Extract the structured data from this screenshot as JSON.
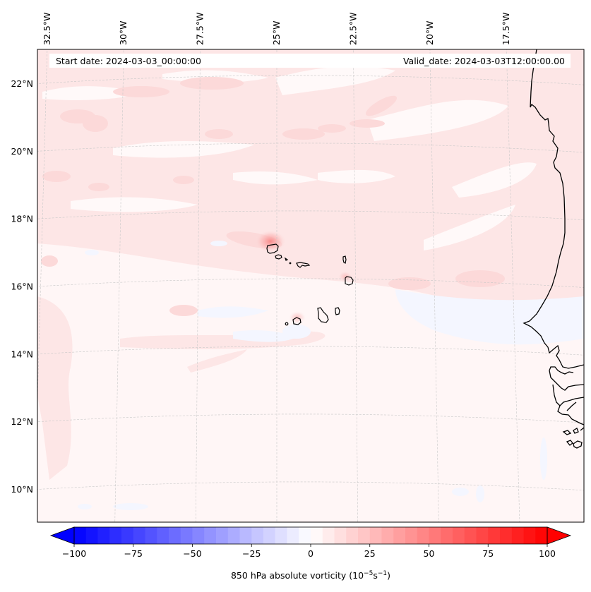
{
  "map": {
    "title_left_label": "Start date: 2024-03-03_00:00:00",
    "title_right_label": "Valid_date: 2024-03-03T12:00:00.00",
    "variable": "850 hPa absolute vorticity",
    "units": "10^-5 s^-1",
    "projection": "Lambert conformal",
    "extent": {
      "lon": [
        -33,
        -15
      ],
      "lat": [
        9,
        23
      ]
    },
    "lon_ticks": [
      {
        "value": -32.5,
        "label": "32.5°W"
      },
      {
        "value": -30,
        "label": "30°W"
      },
      {
        "value": -27.5,
        "label": "27.5°W"
      },
      {
        "value": -25,
        "label": "25°W"
      },
      {
        "value": -22.5,
        "label": "22.5°W"
      },
      {
        "value": -20,
        "label": "20°W"
      },
      {
        "value": -17.5,
        "label": "17.5°W"
      }
    ],
    "lat_ticks": [
      {
        "value": 22,
        "label": "22°N"
      },
      {
        "value": 20,
        "label": "20°N"
      },
      {
        "value": 18,
        "label": "18°N"
      },
      {
        "value": 16,
        "label": "16°N"
      },
      {
        "value": 14,
        "label": "14°N"
      },
      {
        "value": 12,
        "label": "12°N"
      },
      {
        "value": 10,
        "label": "10°N"
      }
    ],
    "features": [
      "Cape Verde islands",
      "West African coastline"
    ],
    "gridlines": "dashed, light gray"
  },
  "colorbar": {
    "label_main": "850 hPa absolute vorticity (10",
    "label_exp1": "−5",
    "label_mid": "s",
    "label_exp2": "−1",
    "label_end": ")",
    "min": -100,
    "max": 100,
    "step": 5,
    "extend": "both",
    "colormap": "bwr",
    "ticks": [
      {
        "value": -100,
        "label": "−100"
      },
      {
        "value": -75,
        "label": "−75"
      },
      {
        "value": -50,
        "label": "−50"
      },
      {
        "value": -25,
        "label": "−25"
      },
      {
        "value": 0,
        "label": "0"
      },
      {
        "value": 25,
        "label": "25"
      },
      {
        "value": 50,
        "label": "50"
      },
      {
        "value": 75,
        "label": "75"
      },
      {
        "value": 100,
        "label": "100"
      }
    ],
    "colors": {
      "low": "#0000ff",
      "mid": "#ffffff",
      "high": "#ff0000"
    }
  }
}
